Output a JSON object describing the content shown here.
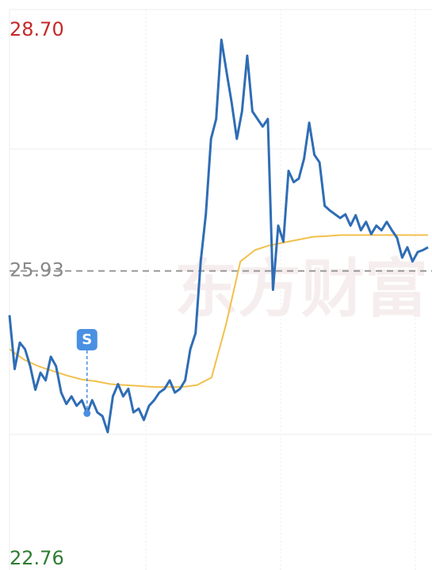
{
  "chart_data": {
    "type": "line",
    "watermark": "东方财富",
    "ylim": [
      22.76,
      28.7
    ],
    "yticks": [
      {
        "value": 28.7,
        "label": "28.70",
        "color": "#c62828"
      },
      {
        "value": 25.93,
        "label": "25.93",
        "color": "#888888"
      },
      {
        "value": 22.76,
        "label": "22.76",
        "color": "#2e7d32"
      }
    ],
    "series": [
      {
        "color": "#2f6db5",
        "values": [
          25.46,
          24.89,
          25.17,
          25.1,
          24.92,
          24.67,
          24.85,
          24.77,
          25.02,
          24.92,
          24.64,
          24.52,
          24.6,
          24.5,
          24.56,
          24.42,
          24.56,
          24.43,
          24.39,
          24.22,
          24.6,
          24.73,
          24.6,
          24.68,
          24.43,
          24.47,
          24.35,
          24.5,
          24.56,
          24.64,
          24.68,
          24.77,
          24.64,
          24.68,
          24.77,
          25.1,
          25.27,
          26.03,
          26.53,
          27.33,
          27.54,
          28.38,
          28.04,
          27.71,
          27.33,
          27.62,
          28.21,
          27.62,
          27.54,
          27.46,
          27.54,
          25.73,
          26.41,
          26.24,
          26.99,
          26.87,
          26.91,
          27.12,
          27.5,
          27.16,
          27.08,
          26.62,
          26.57,
          26.53,
          26.49,
          26.53,
          26.41,
          26.52,
          26.36,
          26.45,
          26.32,
          26.41,
          26.36,
          26.45,
          26.36,
          26.28,
          26.07,
          26.18,
          26.03,
          26.13,
          26.15,
          26.18
        ]
      },
      {
        "color": "#f2c04c",
        "values": [
          25.1,
          24.99,
          24.92,
          24.87,
          24.82,
          24.78,
          24.76,
          24.73,
          24.72,
          24.71,
          24.7,
          24.7,
          24.7,
          24.72,
          24.8,
          25.36,
          26.03,
          26.15,
          26.2,
          26.23,
          26.26,
          26.29,
          26.3,
          26.31,
          26.31,
          26.31,
          26.31,
          26.31,
          26.31,
          26.31
        ]
      }
    ],
    "annotations": [
      {
        "text": "S",
        "value": 24.42
      }
    ]
  }
}
